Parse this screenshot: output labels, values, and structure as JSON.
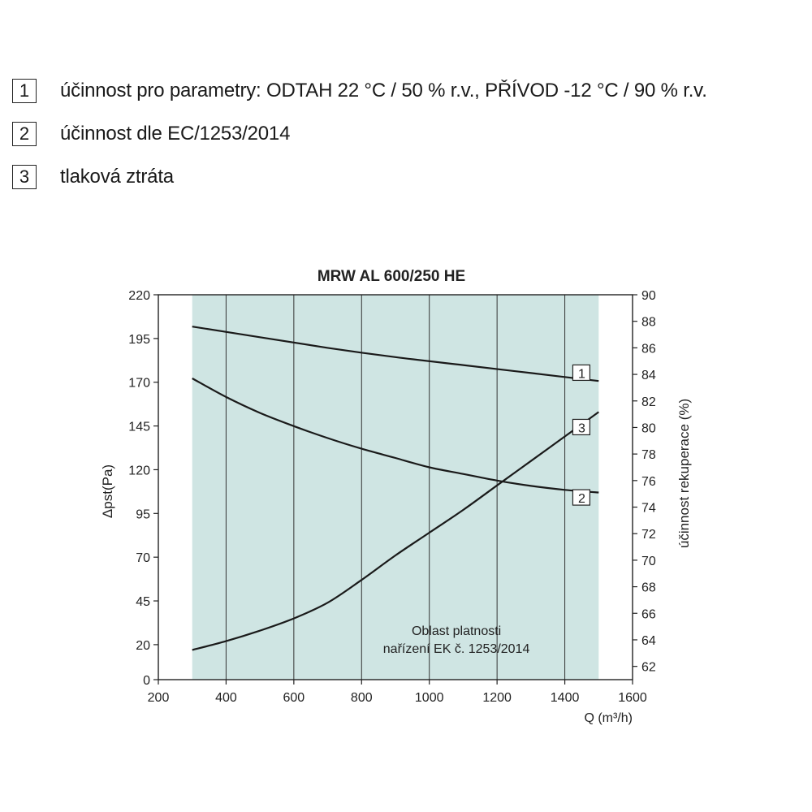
{
  "legend": [
    {
      "num": "1",
      "text": "účinnost pro parametry: ODTAH 22 °C / 50 % r.v., PŘÍVOD -12 °C / 90 % r.v."
    },
    {
      "num": "2",
      "text": "účinnost dle EC/1253/2014"
    },
    {
      "num": "3",
      "text": "tlaková ztráta"
    }
  ],
  "chart_data": {
    "type": "line",
    "title": "MRW AL 600/250 HE",
    "xlabel": "Q (m³/h)",
    "ylabel": "Δpst(Pa)",
    "y2label": "účinnost rekuperace (%)",
    "xlim": [
      200,
      1600
    ],
    "ylim": [
      0,
      220
    ],
    "y2lim": [
      61,
      90
    ],
    "x_ticks": [
      200,
      400,
      600,
      800,
      1000,
      1200,
      1400,
      1600
    ],
    "y_ticks": [
      0,
      20,
      45,
      70,
      95,
      120,
      145,
      170,
      195,
      220
    ],
    "y2_ticks": [
      62,
      64,
      66,
      68,
      70,
      72,
      74,
      76,
      78,
      80,
      82,
      84,
      86,
      88,
      90
    ],
    "shaded_region": {
      "x": [
        300,
        1500
      ],
      "label_lines": [
        "Oblast platnosti",
        "nařízení EK č. 1253/2014"
      ]
    },
    "series": [
      {
        "name": "1",
        "axis": "right",
        "x": [
          300,
          500,
          700,
          900,
          1100,
          1300,
          1500
        ],
        "y": [
          87.6,
          86.8,
          86.0,
          85.3,
          84.7,
          84.1,
          83.5
        ]
      },
      {
        "name": "2",
        "axis": "right",
        "x": [
          300,
          400,
          500,
          600,
          700,
          800,
          900,
          1000,
          1100,
          1200,
          1300,
          1400,
          1500
        ],
        "y": [
          83.7,
          82.3,
          81.1,
          80.1,
          79.2,
          78.4,
          77.7,
          77.0,
          76.5,
          76.0,
          75.6,
          75.3,
          75.1
        ]
      },
      {
        "name": "3",
        "axis": "left",
        "x": [
          300,
          400,
          500,
          600,
          700,
          800,
          900,
          1000,
          1100,
          1200,
          1300,
          1400,
          1500
        ],
        "y": [
          17,
          22,
          28,
          35,
          44,
          57,
          71,
          84,
          97,
          111,
          125,
          139,
          153
        ]
      }
    ]
  }
}
